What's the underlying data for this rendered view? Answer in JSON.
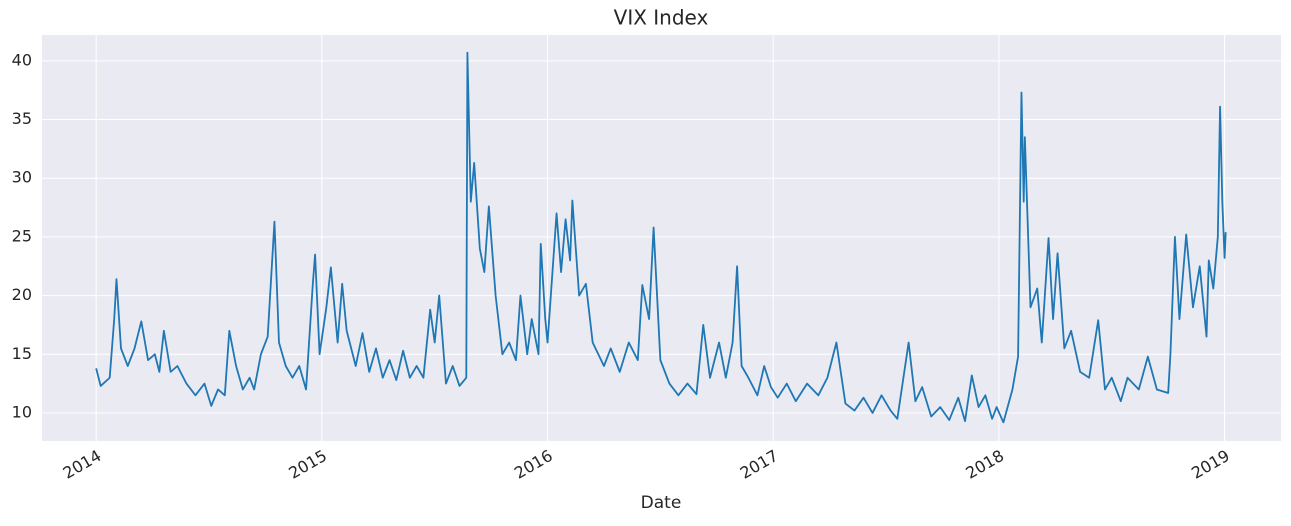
{
  "chart_data": {
    "type": "line",
    "title": "VIX Index",
    "x_label": "Date",
    "color": "#1f77b4",
    "grid": true,
    "xlim": [
      2013.76,
      2019.25
    ],
    "xticks": [
      2014,
      2015,
      2016,
      2017,
      2018,
      2019
    ],
    "ylim": [
      7.61,
      42.2
    ],
    "yticks": [
      10,
      15,
      20,
      25,
      30,
      35,
      40
    ],
    "x": [
      2014.0,
      2014.02,
      2014.06,
      2014.08,
      2014.09,
      2014.11,
      2014.14,
      2014.17,
      2014.2,
      2014.23,
      2014.26,
      2014.28,
      2014.3,
      2014.33,
      2014.36,
      2014.4,
      2014.44,
      2014.48,
      2014.51,
      2014.54,
      2014.57,
      2014.59,
      2014.62,
      2014.65,
      2014.68,
      2014.7,
      2014.73,
      2014.76,
      2014.79,
      2014.81,
      2014.84,
      2014.87,
      2014.9,
      2014.93,
      2014.96,
      2014.97,
      2014.99,
      2015.02,
      2015.04,
      2015.07,
      2015.09,
      2015.11,
      2015.15,
      2015.18,
      2015.21,
      2015.24,
      2015.27,
      2015.3,
      2015.33,
      2015.36,
      2015.39,
      2015.42,
      2015.45,
      2015.48,
      2015.5,
      2015.52,
      2015.55,
      2015.58,
      2015.61,
      2015.64,
      2015.645,
      2015.66,
      2015.675,
      2015.7,
      2015.72,
      2015.74,
      2015.77,
      2015.8,
      2015.83,
      2015.86,
      2015.88,
      2015.91,
      2015.93,
      2015.96,
      2015.97,
      2015.99,
      2016.0,
      2016.04,
      2016.06,
      2016.08,
      2016.1,
      2016.11,
      2016.14,
      2016.17,
      2016.2,
      2016.25,
      2016.28,
      2016.32,
      2016.36,
      2016.4,
      2016.42,
      2016.45,
      2016.47,
      2016.5,
      2016.54,
      2016.58,
      2016.62,
      2016.66,
      2016.69,
      2016.72,
      2016.76,
      2016.79,
      2016.82,
      2016.84,
      2016.86,
      2016.89,
      2016.93,
      2016.96,
      2016.99,
      2017.02,
      2017.06,
      2017.1,
      2017.15,
      2017.2,
      2017.24,
      2017.28,
      2017.32,
      2017.36,
      2017.4,
      2017.44,
      2017.48,
      2017.52,
      2017.55,
      2017.6,
      2017.63,
      2017.66,
      2017.7,
      2017.74,
      2017.78,
      2017.82,
      2017.85,
      2017.88,
      2017.91,
      2017.94,
      2017.97,
      2017.99,
      2018.02,
      2018.06,
      2018.085,
      2018.1,
      2018.11,
      2018.115,
      2018.14,
      2018.17,
      2018.19,
      2018.22,
      2018.24,
      2018.26,
      2018.29,
      2018.32,
      2018.36,
      2018.4,
      2018.44,
      2018.47,
      2018.5,
      2018.54,
      2018.57,
      2018.62,
      2018.66,
      2018.7,
      2018.75,
      2018.76,
      2018.78,
      2018.8,
      2018.83,
      2018.86,
      2018.89,
      2018.92,
      2018.93,
      2018.95,
      2018.97,
      2018.98,
      2018.99,
      2019.0,
      2019.005
    ],
    "values": [
      13.8,
      12.3,
      13,
      18,
      21.4,
      15.5,
      14,
      15.5,
      17.8,
      14.5,
      15,
      13.5,
      17,
      13.5,
      14,
      12.5,
      11.5,
      12.5,
      10.6,
      12,
      11.5,
      17,
      14,
      12,
      13,
      12,
      15,
      16.5,
      26.3,
      16,
      14,
      13,
      14,
      12,
      21,
      23.5,
      15,
      19,
      22.4,
      16,
      21,
      17,
      14,
      16.8,
      13.5,
      15.5,
      13,
      14.5,
      12.8,
      15.3,
      13,
      14,
      13,
      18.8,
      16,
      20,
      12.5,
      14,
      12.3,
      13,
      40.7,
      28,
      31.3,
      24,
      22,
      27.6,
      20,
      15,
      16,
      14.5,
      20,
      15,
      18,
      15,
      24.4,
      18,
      16,
      27,
      22,
      26.5,
      23,
      28.1,
      20,
      21,
      16,
      14,
      15.5,
      13.5,
      16,
      14.5,
      20.9,
      18,
      25.8,
      14.5,
      12.5,
      11.5,
      12.5,
      11.6,
      17.5,
      13,
      16,
      13,
      16,
      22.5,
      14,
      13,
      11.5,
      14,
      12.2,
      11.3,
      12.5,
      11,
      12.5,
      11.5,
      13,
      16,
      10.8,
      10.2,
      11.3,
      10,
      11.5,
      10.2,
      9.5,
      16,
      11,
      12.2,
      9.7,
      10.5,
      9.4,
      11.3,
      9.3,
      13.2,
      10.5,
      11.5,
      9.5,
      10.5,
      9.2,
      12,
      14.8,
      37.3,
      28,
      33.5,
      19,
      20.6,
      16,
      24.9,
      18,
      23.6,
      15.5,
      17,
      13.5,
      13,
      17.9,
      12,
      13,
      11,
      13,
      12,
      14.8,
      12,
      11.7,
      15,
      25,
      18,
      25.2,
      19,
      22.5,
      16.5,
      23,
      20.6,
      25,
      36.1,
      28,
      23.2,
      25.4
    ]
  }
}
